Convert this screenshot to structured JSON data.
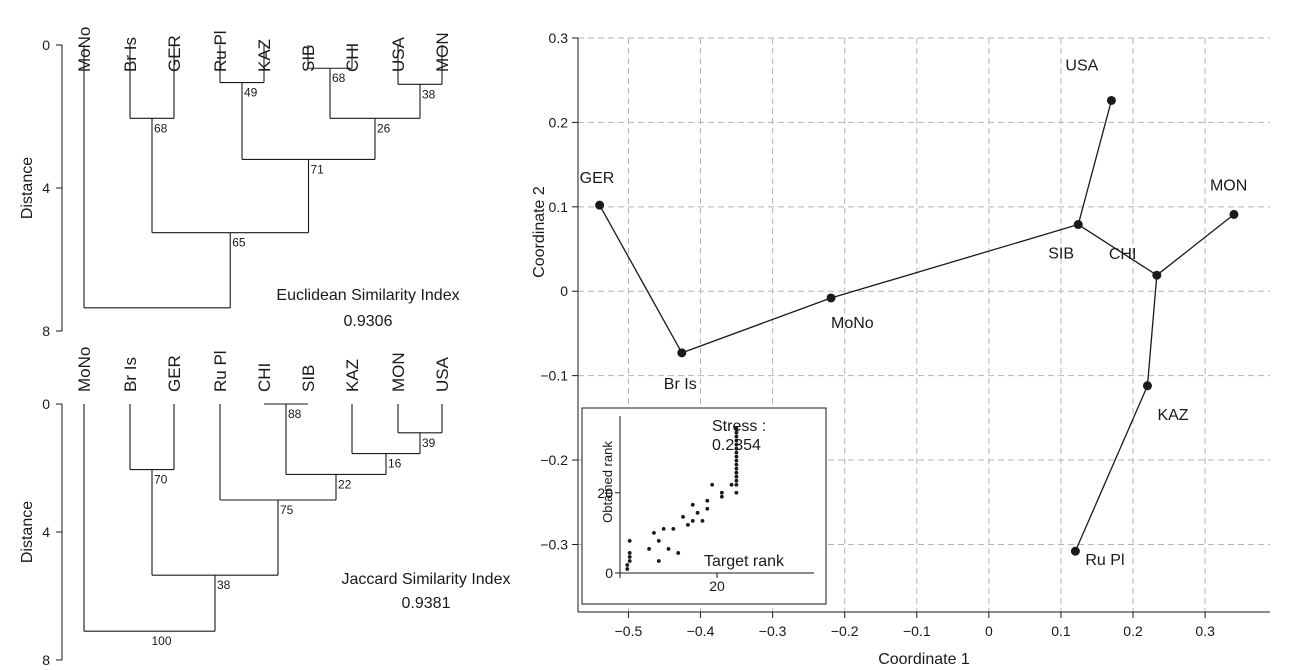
{
  "chart_data": [
    {
      "type": "dendrogram",
      "ylabel": "Distance",
      "ylim": [
        0,
        8
      ],
      "yticks": [
        0,
        4,
        8
      ],
      "leaves": [
        "MoNo",
        "Br Is",
        "GER",
        "Ru Pl",
        "KAZ",
        "SIB",
        "CHI",
        "USA",
        "MON"
      ],
      "merges": [
        {
          "left": 7,
          "right": 8,
          "height": 1.1,
          "support": "38"
        },
        {
          "left": 5,
          "right": 6,
          "height": 0.65,
          "support": "68"
        },
        {
          "left": 3,
          "right": 4,
          "height": 1.05,
          "support": "49"
        },
        {
          "left": 1,
          "right": 2,
          "height": 2.05,
          "support": "68"
        },
        {
          "left": "SIB+CHI",
          "right": "USA+MON",
          "height": 2.05,
          "support": "26"
        },
        {
          "left": "Ru Pl+KAZ",
          "right": "SIB+CHI+USA+MON",
          "height": 3.2,
          "support": "71"
        },
        {
          "left": "Br Is+GER",
          "right": "Ru Pl..MON",
          "height": 5.25,
          "support": "65"
        },
        {
          "left": 0,
          "right": "Br Is..MON",
          "height": 7.35,
          "support": ""
        }
      ],
      "index_name": "Euclidean Similarity Index",
      "index_value": "0.9306"
    },
    {
      "type": "dendrogram",
      "ylabel": "Distance",
      "ylim": [
        0,
        8
      ],
      "yticks": [
        0,
        4,
        8
      ],
      "leaves": [
        "MoNo",
        "Br Is",
        "GER",
        "Ru Pl",
        "CHI",
        "SIB",
        "KAZ",
        "MON",
        "USA"
      ],
      "merges": [
        {
          "left": 4,
          "right": 5,
          "height": 0.0,
          "support": "88"
        },
        {
          "left": 7,
          "right": 8,
          "height": 0.9,
          "support": "39"
        },
        {
          "left": 6,
          "right": "MON+USA",
          "height": 1.55,
          "support": "16"
        },
        {
          "left": 1,
          "right": 2,
          "height": 2.05,
          "support": "70"
        },
        {
          "left": "CHI+SIB",
          "right": "KAZ+MON+USA",
          "height": 2.2,
          "support": "22"
        },
        {
          "left": 3,
          "right": "CHI..USA",
          "height": 3.0,
          "support": "75"
        },
        {
          "left": "Br Is+GER",
          "right": "Ru Pl..USA",
          "height": 5.35,
          "support": "38"
        },
        {
          "left": 0,
          "right": "Br Is..USA",
          "height": 7.1,
          "support": "100"
        }
      ],
      "index_name": "Jaccard Similarity Index",
      "index_value": "0.9381"
    },
    {
      "type": "scatter",
      "xlabel": "Coordinate 1",
      "ylabel": "Coordinate 2",
      "xlim": [
        -0.57,
        0.39
      ],
      "ylim": [
        -0.38,
        0.3
      ],
      "xticks": [
        -0.5,
        -0.4,
        -0.3,
        -0.2,
        -0.1,
        0,
        0.1,
        0.2,
        0.3
      ],
      "xtick_labels": [
        "−0.5",
        "−0.4",
        "−0.3",
        "−0.2",
        "−0.1",
        "0",
        "0.1",
        "0.2",
        "0.3"
      ],
      "yticks": [
        -0.3,
        -0.2,
        -0.1,
        0,
        0.1,
        0.2,
        0.3
      ],
      "ytick_labels": [
        "−0.3",
        "−0.2",
        "−0.1",
        "0",
        "0.1",
        "0.2",
        "0.3"
      ],
      "grid": true,
      "points": [
        {
          "name": "GER",
          "x": -0.54,
          "y": 0.102
        },
        {
          "name": "Br Is",
          "x": -0.426,
          "y": -0.073
        },
        {
          "name": "MoNo",
          "x": -0.219,
          "y": -0.008
        },
        {
          "name": "SIB",
          "x": 0.124,
          "y": 0.079
        },
        {
          "name": "USA",
          "x": 0.17,
          "y": 0.226
        },
        {
          "name": "CHI",
          "x": 0.233,
          "y": 0.019
        },
        {
          "name": "MON",
          "x": 0.34,
          "y": 0.091
        },
        {
          "name": "KAZ",
          "x": 0.22,
          "y": -0.112
        },
        {
          "name": "Ru Pl",
          "x": 0.12,
          "y": -0.308
        }
      ],
      "edges": [
        [
          "GER",
          "Br Is"
        ],
        [
          "Br Is",
          "MoNo"
        ],
        [
          "MoNo",
          "SIB"
        ],
        [
          "SIB",
          "USA"
        ],
        [
          "SIB",
          "CHI"
        ],
        [
          "CHI",
          "MON"
        ],
        [
          "CHI",
          "KAZ"
        ],
        [
          "KAZ",
          "Ru Pl"
        ]
      ]
    },
    {
      "type": "scatter",
      "title": "Stress :",
      "stress_value": "0.2354",
      "xlabel": "Target rank",
      "ylabel": "Obtained rank",
      "xlim": [
        0,
        36
      ],
      "ylim": [
        0,
        36
      ],
      "xticks": [
        0,
        20
      ],
      "xtick_labels": [
        "",
        "20"
      ],
      "yticks": [
        0,
        20
      ],
      "ytick_labels": [
        "0",
        "20"
      ],
      "points": [
        [
          1.5,
          1
        ],
        [
          1.5,
          2
        ],
        [
          2,
          3
        ],
        [
          2,
          4
        ],
        [
          2,
          5
        ],
        [
          2,
          8
        ],
        [
          6,
          6
        ],
        [
          7,
          10
        ],
        [
          8,
          3
        ],
        [
          8,
          8
        ],
        [
          9,
          11
        ],
        [
          10,
          6
        ],
        [
          11,
          11
        ],
        [
          12,
          5
        ],
        [
          13,
          14
        ],
        [
          14,
          12
        ],
        [
          15,
          13
        ],
        [
          15,
          17
        ],
        [
          16,
          15
        ],
        [
          17,
          13
        ],
        [
          18,
          16
        ],
        [
          18,
          18
        ],
        [
          19,
          22
        ],
        [
          21,
          19
        ],
        [
          21,
          20
        ],
        [
          23,
          22
        ],
        [
          24,
          20
        ],
        [
          24,
          22
        ],
        [
          24,
          23
        ],
        [
          24,
          24
        ],
        [
          24,
          25
        ],
        [
          24,
          26
        ],
        [
          24,
          27
        ],
        [
          24,
          28
        ],
        [
          24,
          29
        ],
        [
          24,
          30
        ],
        [
          24,
          31
        ],
        [
          24,
          32
        ],
        [
          24,
          33
        ],
        [
          24,
          34
        ],
        [
          24,
          35
        ],
        [
          24,
          36
        ]
      ]
    }
  ]
}
